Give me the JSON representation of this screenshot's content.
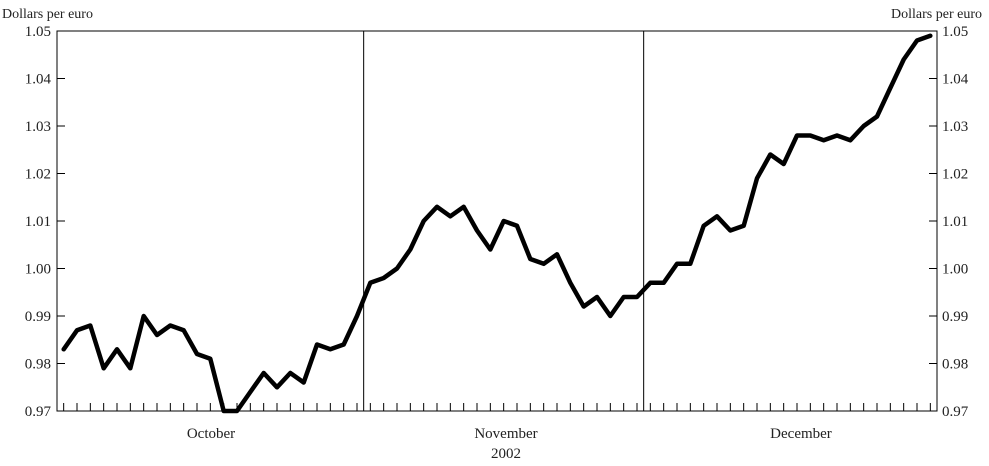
{
  "chart_data": {
    "type": "line",
    "title": "",
    "y_unit_left": "Dollars per euro",
    "y_unit_right": "Dollars per euro",
    "ylim": [
      0.97,
      1.05
    ],
    "y_ticks": [
      "0.97",
      "0.98",
      "0.99",
      "1.00",
      "1.01",
      "1.02",
      "1.03",
      "1.04",
      "1.05"
    ],
    "x_month_labels": [
      "October",
      "November",
      "December"
    ],
    "x_year_label": "2002",
    "grid": false,
    "series": [
      {
        "values": [
          0.983,
          0.987,
          0.988,
          0.979,
          0.983,
          0.979,
          0.99,
          0.986,
          0.988,
          0.987,
          0.982,
          0.981,
          0.97,
          0.97,
          0.974,
          0.978,
          0.975,
          0.978,
          0.976,
          0.984,
          0.983,
          0.984,
          0.99,
          0.997,
          0.998,
          1.0,
          1.004,
          1.01,
          1.013,
          1.011,
          1.013,
          1.008,
          1.004,
          1.01,
          1.009,
          1.002,
          1.001,
          1.003,
          0.997,
          0.992,
          0.994,
          0.99,
          0.994,
          0.994,
          0.997,
          0.997,
          1.001,
          1.001,
          1.009,
          1.011,
          1.008,
          1.009,
          1.019,
          1.024,
          1.022,
          1.028,
          1.028,
          1.027,
          1.028,
          1.027,
          1.03,
          1.032,
          1.038,
          1.044,
          1.048,
          1.049
        ]
      }
    ],
    "month_day_ranges": [
      [
        0,
        22
      ],
      [
        23,
        43
      ],
      [
        44,
        65
      ]
    ]
  }
}
